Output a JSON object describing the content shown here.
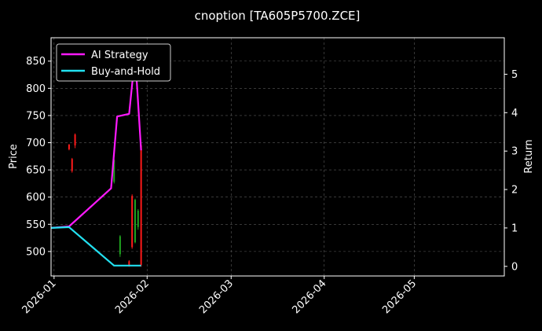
{
  "chart_data": {
    "type": "line",
    "title": "cnoption [TA605P5700.ZCE]",
    "xlabel": "",
    "ylabel": "Price",
    "y2label": "Return",
    "background": "#000000",
    "grid": true,
    "legend_position": "top-left",
    "x_range": [
      "2025-12-31",
      "2026-05-31"
    ],
    "x_ticks": [
      "2026-01",
      "2026-02",
      "2026-03",
      "2026-04",
      "2026-05"
    ],
    "x_tick_dates": [
      "2026-01-01",
      "2026-02-01",
      "2026-03-01",
      "2026-04-01",
      "2026-05-01"
    ],
    "ylim": [
      455,
      893
    ],
    "y_ticks": [
      500,
      550,
      600,
      650,
      700,
      750,
      800,
      850
    ],
    "y2lim": [
      -0.25,
      5.95
    ],
    "y2_ticks": [
      0,
      1,
      2,
      3,
      4,
      5
    ],
    "up_color": "#1fa31f",
    "down_color": "#ff1a1a",
    "candles": [
      {
        "date": "2026-01-06",
        "open": 697,
        "close": 688,
        "high": 697,
        "low": 686
      },
      {
        "date": "2026-01-07",
        "open": 670,
        "close": 648,
        "high": 672,
        "low": 645
      },
      {
        "date": "2026-01-08",
        "open": 715,
        "close": 695,
        "high": 717,
        "low": 690
      },
      {
        "date": "2026-01-21",
        "open": 628,
        "close": 668,
        "high": 670,
        "low": 625
      },
      {
        "date": "2026-01-23",
        "open": 495,
        "close": 528,
        "high": 530,
        "low": 490
      },
      {
        "date": "2026-01-26",
        "open": 482,
        "close": 474,
        "high": 484,
        "low": 472
      },
      {
        "date": "2026-01-27",
        "open": 602,
        "close": 508,
        "high": 605,
        "low": 505
      },
      {
        "date": "2026-01-28",
        "open": 517,
        "close": 595,
        "high": 597,
        "low": 515
      },
      {
        "date": "2026-01-29",
        "open": 545,
        "close": 575,
        "high": 578,
        "low": 540
      },
      {
        "date": "2026-01-30",
        "open": 695,
        "close": 475,
        "high": 698,
        "low": 472
      }
    ],
    "series": [
      {
        "name": "AI Strategy",
        "color": "#ff1aff",
        "axis": "right",
        "x": [
          "2025-12-31",
          "2026-01-06",
          "2026-01-20",
          "2026-01-22",
          "2026-01-26",
          "2026-01-28",
          "2026-01-30"
        ],
        "y": [
          1.0,
          1.04,
          2.03,
          3.9,
          3.97,
          5.5,
          3.02
        ]
      },
      {
        "name": "Buy-and-Hold",
        "color": "#22e0f0",
        "axis": "right",
        "x": [
          "2025-12-31",
          "2026-01-06",
          "2026-01-21",
          "2026-01-30"
        ],
        "y": [
          1.0,
          1.02,
          0.02,
          0.02
        ]
      }
    ]
  }
}
